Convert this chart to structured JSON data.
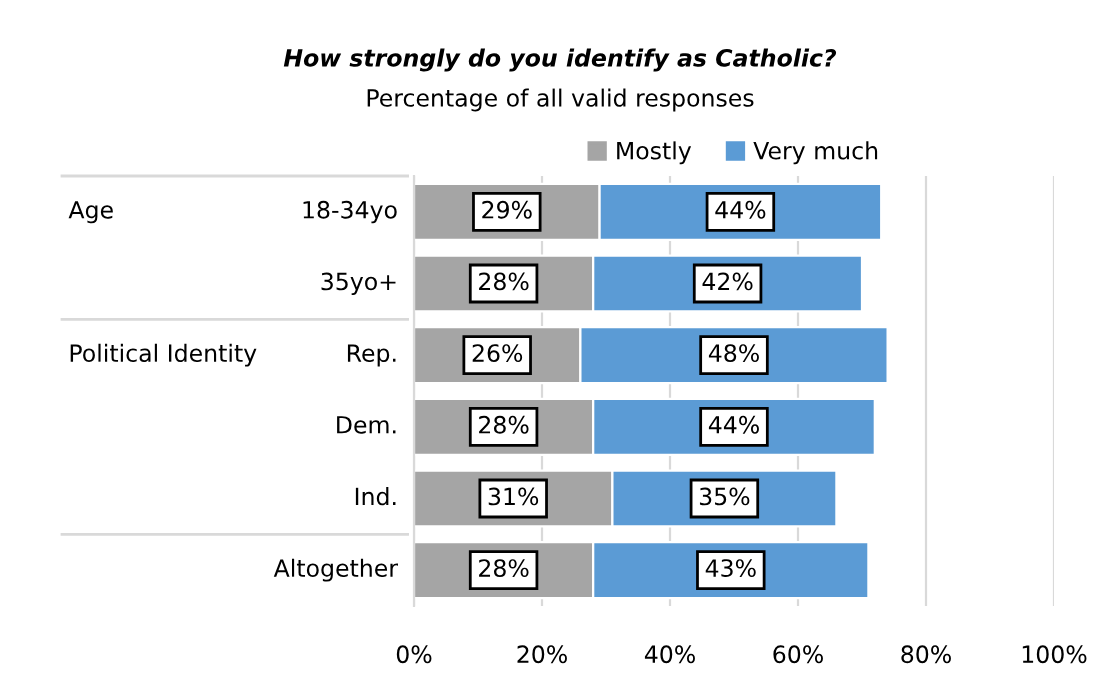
{
  "chart_data": {
    "type": "bar",
    "orientation": "horizontal",
    "stacked": true,
    "title": "How strongly do you identify as Catholic?",
    "subtitle": "Percentage of all valid responses",
    "categories": [
      "18-34yo",
      "35yo+",
      "Rep.",
      "Dem.",
      "Ind.",
      "Altogether"
    ],
    "series": [
      {
        "name": "Mostly",
        "color": "#a5a5a5",
        "values": [
          29,
          28,
          26,
          28,
          31,
          28
        ],
        "value_labels": [
          "29%",
          "28%",
          "26%",
          "28%",
          "31%",
          "28%"
        ]
      },
      {
        "name": "Very much",
        "color": "#5b9bd5",
        "values": [
          44,
          42,
          48,
          44,
          35,
          43
        ],
        "value_labels": [
          "44%",
          "42%",
          "48%",
          "44%",
          "35%",
          "43%"
        ]
      }
    ],
    "annotations": [
      "Age",
      "Political Identity"
    ],
    "xlim": [
      0,
      100
    ],
    "xticks": [
      {
        "value": 0,
        "label": "0%"
      },
      {
        "value": 20,
        "label": "20%"
      },
      {
        "value": 40,
        "label": "40%"
      },
      {
        "value": 60,
        "label": "60%"
      },
      {
        "value": 80,
        "label": "80%"
      },
      {
        "value": 100,
        "label": "100%"
      }
    ],
    "grid": "x",
    "legend": "top"
  }
}
